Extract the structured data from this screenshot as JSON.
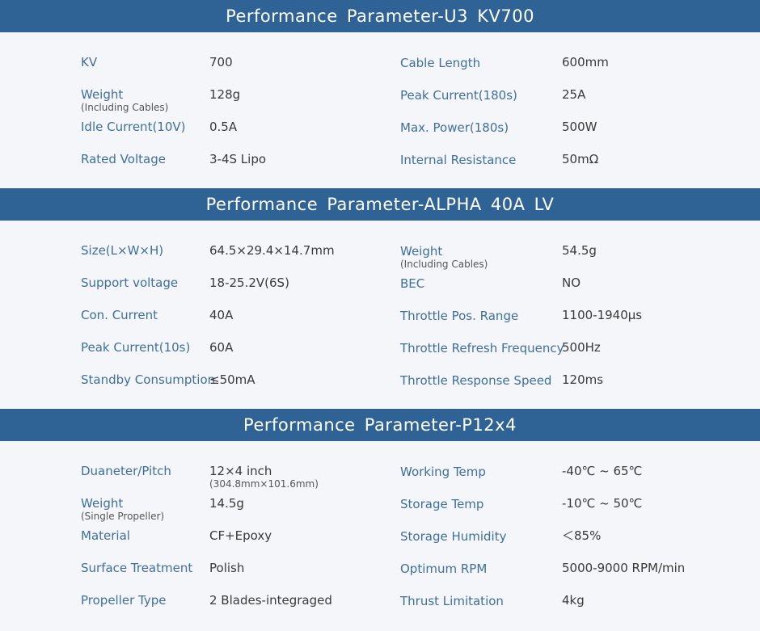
{
  "sections": [
    {
      "title": "Performance Parameter-U3 KV700",
      "rows": [
        {
          "l1": "KV",
          "n1": "",
          "v1": "700",
          "v1n": "",
          "l2": "Cable Length",
          "v2": "600mm"
        },
        {
          "l1": "Weight",
          "n1": "(Including Cables)",
          "v1": "128g",
          "v1n": "",
          "l2": "Peak Current(180s)",
          "v2": "25A"
        },
        {
          "l1": "Idle Current(10V)",
          "n1": "",
          "v1": "0.5A",
          "v1n": "",
          "l2": "Max. Power(180s)",
          "v2": "500W"
        },
        {
          "l1": "Rated Voltage",
          "n1": "",
          "v1": "3-4S Lipo",
          "v1n": "",
          "l2": "Internal Resistance",
          "v2": "50mΩ"
        }
      ]
    },
    {
      "title": "Performance Parameter-ALPHA 40A LV",
      "rows": [
        {
          "l1": "Size(L×W×H)",
          "n1": "",
          "v1": "64.5×29.4×14.7mm",
          "v1n": "",
          "l2": "Weight",
          "n2": "(Including Cables)",
          "v2": "54.5g"
        },
        {
          "l1": "Support voltage",
          "n1": "",
          "v1": "18-25.2V(6S)",
          "v1n": "",
          "l2": "BEC",
          "v2": "NO"
        },
        {
          "l1": "Con. Current",
          "n1": "",
          "v1": "40A",
          "v1n": "",
          "l2": "Throttle Pos. Range",
          "v2": "1100-1940µs"
        },
        {
          "l1": "Peak Current(10s)",
          "n1": "",
          "v1": "60A",
          "v1n": "",
          "l2": "Throttle Refresh Frequency",
          "v2": "500Hz"
        },
        {
          "l1": "Standby Consumption",
          "n1": "",
          "v1": "≤50mA",
          "v1n": "",
          "l2": "Throttle Response Speed",
          "v2": "120ms"
        }
      ]
    },
    {
      "title": "Performance Parameter-P12x4",
      "rows": [
        {
          "l1": "Duaneter/Pitch",
          "n1": "",
          "v1": "12×4 inch",
          "v1n": "(304.8mm×101.6mm)",
          "l2": "Working Temp",
          "v2": "-40℃ ~ 65℃"
        },
        {
          "l1": "Weight",
          "n1": "(Single Propeller)",
          "v1": "14.5g",
          "v1n": "",
          "l2": "Storage Temp",
          "v2": "-10℃ ~ 50℃"
        },
        {
          "l1": "Material",
          "n1": "",
          "v1": "CF+Epoxy",
          "v1n": "",
          "l2": "Storage Humidity",
          "v2": "＜85%"
        },
        {
          "l1": "Surface Treatment",
          "n1": "",
          "v1": "Polish",
          "v1n": "",
          "l2": "Optimum RPM",
          "v2": "5000-9000 RPM/min"
        },
        {
          "l1": "Propeller Type",
          "n1": "",
          "v1": "2 Blades-integraged",
          "v1n": "",
          "l2": "Thrust Limitation",
          "v2": "4kg"
        }
      ]
    }
  ]
}
